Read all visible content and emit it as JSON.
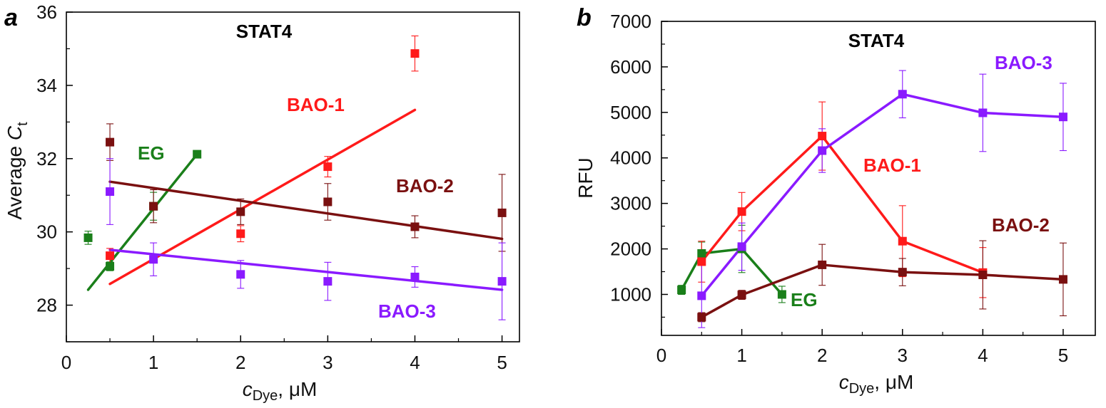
{
  "chart_data": [
    {
      "type": "scatter",
      "panel": "a",
      "title": "STAT4",
      "ylabel_main": "Average ",
      "ylabel_italic": "C",
      "ylabel_sub": "t",
      "xlabel_italic": "c",
      "xlabel_sub": "Dye",
      "xlabel_unit": ", μM",
      "xlim": [
        0,
        5.2
      ],
      "ylim": [
        27,
        36
      ],
      "xticks": [
        "0",
        "1",
        "2",
        "3",
        "4",
        "5"
      ],
      "yticks": [
        "28",
        "30",
        "32",
        "34",
        "36"
      ],
      "series": [
        {
          "name": "EG",
          "color": "#1a7f1a",
          "x": [
            0.25,
            0.5,
            1.0,
            1.5
          ],
          "y": [
            29.84,
            29.06,
            30.7,
            32.12
          ],
          "err": [
            0.18,
            0.12,
            0.38,
            0.1
          ],
          "fit": [
            [
              0.25,
              28.42
            ],
            [
              1.5,
              32.12
            ]
          ]
        },
        {
          "name": "BAO-1",
          "color": "#ff1a1a",
          "x": [
            0.5,
            2.0,
            3.0,
            4.0
          ],
          "y": [
            29.35,
            29.95,
            31.78,
            34.87
          ],
          "err": [
            0.2,
            0.22,
            0.28,
            0.48
          ],
          "fit": [
            [
              0.5,
              28.58
            ],
            [
              4.0,
              33.33
            ]
          ]
        },
        {
          "name": "BAO-2",
          "color": "#7a1010",
          "x": [
            0.5,
            1.0,
            2.0,
            3.0,
            4.0,
            5.0
          ],
          "y": [
            32.45,
            30.7,
            30.55,
            30.82,
            30.14,
            30.52
          ],
          "err": [
            0.5,
            0.45,
            0.35,
            0.5,
            0.3,
            1.05
          ],
          "fit": [
            [
              0.5,
              31.37
            ],
            [
              5.0,
              29.81
            ]
          ]
        },
        {
          "name": "BAO-3",
          "color": "#8a1aff",
          "x": [
            0.5,
            1.0,
            2.0,
            3.0,
            4.0,
            5.0
          ],
          "y": [
            31.1,
            29.25,
            28.84,
            28.65,
            28.77,
            28.65
          ],
          "err": [
            0.9,
            0.45,
            0.38,
            0.52,
            0.28,
            1.05
          ],
          "fit": [
            [
              0.5,
              29.51
            ],
            [
              5.0,
              28.42
            ]
          ]
        }
      ]
    },
    {
      "type": "line",
      "panel": "b",
      "title": "STAT4",
      "ylabel": "RFU",
      "xlabel_italic": "c",
      "xlabel_sub": "Dye",
      "xlabel_unit": ", μM",
      "xlim": [
        0,
        5.4
      ],
      "ylim": [
        100,
        7000
      ],
      "xticks": [
        "0",
        "1",
        "2",
        "3",
        "4",
        "5"
      ],
      "yticks": [
        "1000",
        "2000",
        "3000",
        "4000",
        "5000",
        "6000",
        "7000"
      ],
      "series": [
        {
          "name": "EG",
          "color": "#1a7f1a",
          "x": [
            0.25,
            0.5,
            1.0,
            1.5
          ],
          "y": [
            1100,
            1900,
            2000,
            1000
          ],
          "err": [
            100,
            250,
            520,
            180
          ]
        },
        {
          "name": "BAO-1",
          "color": "#ff1a1a",
          "x": [
            0.5,
            1.0,
            2.0,
            3.0,
            4.0
          ],
          "y": [
            1720,
            2820,
            4480,
            2170,
            1480
          ],
          "err": [
            450,
            420,
            750,
            780,
            550
          ]
        },
        {
          "name": "BAO-2",
          "color": "#7a1010",
          "x": [
            0.5,
            1.0,
            2.0,
            3.0,
            4.0,
            5.0
          ],
          "y": [
            500,
            990,
            1650,
            1490,
            1430,
            1330
          ],
          "err": [
            100,
            100,
            450,
            300,
            750,
            800
          ]
        },
        {
          "name": "BAO-3",
          "color": "#8a1aff",
          "x": [
            0.5,
            1.0,
            2.0,
            3.0,
            4.0,
            5.0
          ],
          "y": [
            970,
            2050,
            4160,
            5400,
            4990,
            4900
          ],
          "err": [
            700,
            520,
            480,
            520,
            850,
            740
          ]
        }
      ]
    }
  ]
}
